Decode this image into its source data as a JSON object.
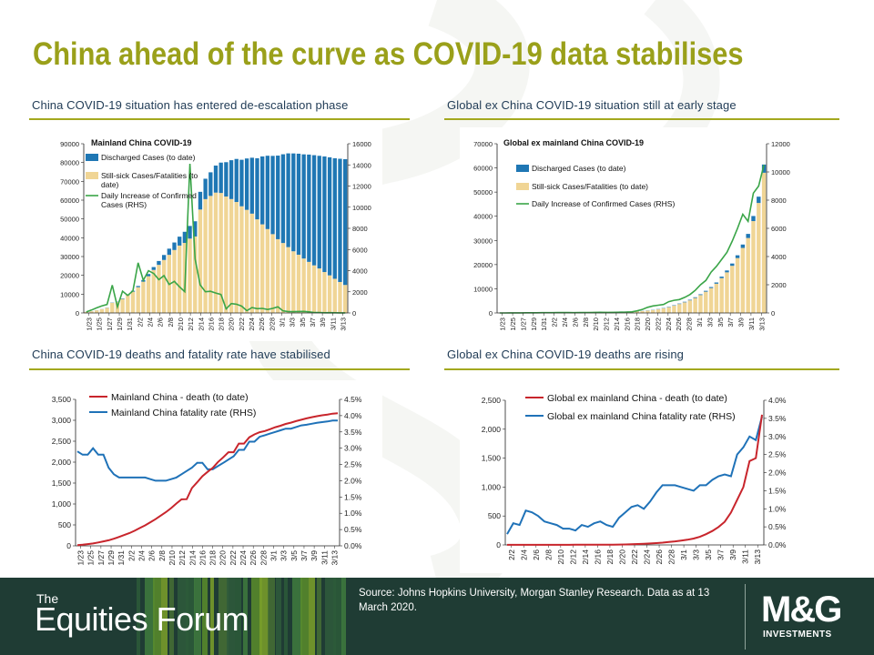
{
  "title": "China ahead of the curve as COVID-19 data stabilises",
  "panels": {
    "p1": "China COVID-19 situation has entered de-escalation phase",
    "p2": "Global ex China COVID-19 situation still at early stage",
    "p3": "China COVID-19 deaths and fatality rate have stabilised",
    "p4": "Global ex China COVID-19 deaths are rising"
  },
  "footer": {
    "the": "The",
    "forum": "Equities Forum",
    "source": "Source: Johns Hopkins University, Morgan Stanley Research. Data as at 13 March 2020.",
    "logo_main": "M&G",
    "logo_sub": "INVESTMENTS"
  },
  "colors": {
    "title": "#9aa01a",
    "blue_bar": "#1f77b4",
    "beige_bar": "#f0d595",
    "green_line": "#3aa548",
    "red_line": "#c8252c",
    "blue_line": "#1f72b8",
    "footer_bg": "#1f3c34"
  },
  "chart_data": [
    {
      "id": "c1",
      "type": "bar",
      "title": "Mainland China COVID-19",
      "xticks": [
        "1/23",
        "1/25",
        "1/27",
        "1/29",
        "1/31",
        "2/2",
        "2/4",
        "2/6",
        "2/8",
        "2/10",
        "2/12",
        "2/14",
        "2/16",
        "2/18",
        "2/20",
        "2/22",
        "2/24",
        "2/26",
        "2/28",
        "3/1",
        "3/3",
        "3/5",
        "3/7",
        "3/9",
        "3/11",
        "3/13"
      ],
      "y_left": {
        "min": 0,
        "max": 90000,
        "ticks": [
          0,
          10000,
          20000,
          30000,
          40000,
          50000,
          60000,
          70000,
          80000,
          90000
        ]
      },
      "y_right": {
        "min": 0,
        "max": 16000,
        "ticks": [
          0,
          2000,
          4000,
          6000,
          8000,
          10000,
          12000,
          14000,
          16000
        ]
      },
      "legend": [
        "Discharged Cases (to date)",
        "Still-sick Cases/Fatalities (to date)",
        "Daily Increase of Confirmed Cases (RHS)"
      ],
      "series": [
        {
          "name": "Discharged Cases (to date)",
          "stack": true,
          "values": [
            28,
            34,
            49,
            60,
            103,
            126,
            171,
            243,
            328,
            475,
            632,
            892,
            1153,
            1540,
            2050,
            2649,
            3281,
            3996,
            4740,
            5915,
            6728,
            8101,
            9419,
            10844,
            12552,
            14376,
            16155,
            18264,
            20659,
            22888,
            24734,
            27323,
            29745,
            32495,
            36117,
            39002,
            41625,
            44462,
            47204,
            49856,
            52045,
            53726,
            55404,
            57065,
            58600,
            59897,
            61475,
            62793,
            64111,
            65541,
            66911
          ]
        },
        {
          "name": "Still-sick Cases/Fatalities (to date)",
          "stack": true,
          "values": [
            543,
            886,
            1385,
            2017,
            2715,
            5397,
            5802,
            7468,
            9457,
            11316,
            13706,
            16627,
            19534,
            22864,
            25577,
            28176,
            30904,
            33477,
            35834,
            37251,
            39540,
            40660,
            55005,
            60543,
            62253,
            64002,
            63811,
            61925,
            60580,
            59020,
            56734,
            54839,
            52814,
            49787,
            47120,
            44611,
            41912,
            39229,
            37193,
            35015,
            32795,
            30977,
            28949,
            27164,
            25315,
            23676,
            21760,
            19988,
            18171,
            16465,
            14880
          ]
        },
        {
          "name": "Daily Increase of Confirmed Cases (RHS)",
          "axis": "right",
          "values": [
            95,
            277,
            486,
            669,
            802,
            2632,
            578,
            2054,
            1661,
            2089,
            4739,
            3086,
            3991,
            3733,
            3147,
            3523,
            2690,
            2987,
            2467,
            2015,
            14108,
            5090,
            2641,
            2008,
            2048,
            1888,
            1749,
            391,
            889,
            823,
            648,
            214,
            508,
            406,
            433,
            327,
            427,
            573,
            202,
            125,
            119,
            138,
            143,
            99,
            44,
            40,
            19,
            24,
            15,
            11,
            8
          ]
        }
      ]
    },
    {
      "id": "c2",
      "type": "bar",
      "title": "Global ex mainland China COVID-19",
      "xticks": [
        "1/23",
        "1/25",
        "1/27",
        "1/29",
        "1/31",
        "2/2",
        "2/4",
        "2/6",
        "2/8",
        "2/10",
        "2/12",
        "2/14",
        "2/16",
        "2/18",
        "2/20",
        "2/22",
        "2/24",
        "2/26",
        "2/28",
        "3/1",
        "3/3",
        "3/5",
        "3/7",
        "3/9",
        "3/11",
        "3/13"
      ],
      "y_left": {
        "min": 0,
        "max": 70000,
        "ticks": [
          0,
          10000,
          20000,
          30000,
          40000,
          50000,
          60000,
          70000
        ]
      },
      "y_right": {
        "min": 0,
        "max": 12000,
        "ticks": [
          0,
          2000,
          4000,
          6000,
          8000,
          10000,
          12000
        ]
      },
      "legend": [
        "Discharged Cases (to date)",
        "Still-sick Cases/Fatalities (to date)",
        "Daily Increase of Confirmed Cases (RHS)"
      ],
      "series": [
        {
          "name": "Discharged Cases (to date)",
          "stack": true,
          "values": [
            0,
            0,
            0,
            0,
            0,
            0,
            0,
            0,
            0,
            0,
            0,
            0,
            0,
            0,
            0,
            1,
            2,
            3,
            5,
            8,
            10,
            14,
            20,
            27,
            35,
            44,
            55,
            66,
            80,
            94,
            110,
            130,
            150,
            170,
            193,
            220,
            250,
            285,
            320,
            360,
            420,
            500,
            620,
            770,
            950,
            1150,
            1400,
            1700,
            2100,
            2600,
            3400
          ]
        },
        {
          "name": "Still-sick Cases/Fatalities (to date)",
          "stack": true,
          "values": [
            10,
            20,
            30,
            45,
            60,
            80,
            110,
            140,
            170,
            200,
            250,
            280,
            310,
            330,
            350,
            380,
            400,
            430,
            460,
            480,
            500,
            520,
            540,
            560,
            590,
            620,
            680,
            770,
            950,
            1200,
            1500,
            1900,
            2400,
            3000,
            3700,
            4400,
            5200,
            6200,
            7400,
            8800,
            10300,
            12100,
            14400,
            16800,
            19500,
            22700,
            26900,
            31000,
            38000,
            45500,
            58000
          ]
        },
        {
          "name": "Daily Increase of Confirmed Cases (RHS)",
          "axis": "right",
          "values": [
            2,
            3,
            4,
            6,
            8,
            10,
            12,
            15,
            18,
            20,
            22,
            25,
            25,
            25,
            22,
            25,
            30,
            35,
            40,
            45,
            40,
            40,
            45,
            50,
            60,
            80,
            150,
            250,
            400,
            500,
            550,
            600,
            800,
            900,
            950,
            1100,
            1300,
            1600,
            2000,
            2300,
            2900,
            3300,
            3800,
            4300,
            5100,
            6000,
            7000,
            6500,
            8500,
            9000,
            10500
          ]
        }
      ]
    },
    {
      "id": "c3",
      "type": "line",
      "xticks": [
        "1/23",
        "1/25",
        "1/27",
        "1/29",
        "1/31",
        "2/2",
        "2/4",
        "2/6",
        "2/8",
        "2/10",
        "2/12",
        "2/14",
        "2/16",
        "2/18",
        "2/20",
        "2/22",
        "2/24",
        "2/26",
        "2/28",
        "3/1",
        "3/3",
        "3/5",
        "3/7",
        "3/9",
        "3/11",
        "3/13"
      ],
      "y_left": {
        "min": 0,
        "max": 3500,
        "ticks": [
          0,
          500,
          1000,
          1500,
          2000,
          2500,
          3000,
          3500
        ],
        "labels": [
          "0",
          "500",
          "1,000",
          "1,500",
          "2,000",
          "2,500",
          "3,000",
          "3,500"
        ]
      },
      "y_right": {
        "min": 0,
        "max": 4.5,
        "ticks": [
          0,
          0.5,
          1,
          1.5,
          2,
          2.5,
          3,
          3.5,
          4,
          4.5
        ],
        "labels": [
          "0.0%",
          "0.5%",
          "1.0%",
          "1.5%",
          "2.0%",
          "2.5%",
          "3.0%",
          "3.5%",
          "4.0%",
          "4.5%"
        ]
      },
      "legend": [
        "Mainland China - death (to date)",
        "Mainland China fatality rate (RHS)"
      ],
      "series": [
        {
          "name": "Mainland China - death (to date)",
          "values": [
            17,
            25,
            41,
            56,
            80,
            106,
            132,
            170,
            213,
            259,
            304,
            361,
            425,
            490,
            562,
            636,
            721,
            805,
            902,
            1011,
            1111,
            1115,
            1380,
            1520,
            1662,
            1767,
            1864,
            2003,
            2116,
            2238,
            2238,
            2443,
            2443,
            2593,
            2663,
            2715,
            2744,
            2788,
            2835,
            2870,
            2912,
            2943,
            2981,
            3012,
            3045,
            3073,
            3097,
            3120,
            3136,
            3158,
            3169
          ]
        },
        {
          "name": "Mainland China fatality rate (RHS)",
          "axis": "right",
          "values": [
            2.9,
            2.8,
            2.8,
            3.0,
            2.8,
            2.8,
            2.4,
            2.2,
            2.1,
            2.1,
            2.1,
            2.1,
            2.1,
            2.1,
            2.05,
            2.0,
            2.0,
            2.0,
            2.05,
            2.1,
            2.2,
            2.3,
            2.4,
            2.55,
            2.55,
            2.35,
            2.35,
            2.45,
            2.55,
            2.65,
            2.75,
            2.95,
            2.95,
            3.2,
            3.2,
            3.35,
            3.4,
            3.45,
            3.5,
            3.55,
            3.6,
            3.6,
            3.65,
            3.7,
            3.72,
            3.75,
            3.78,
            3.8,
            3.82,
            3.85,
            3.85
          ]
        }
      ]
    },
    {
      "id": "c4",
      "type": "line",
      "xticks": [
        "2/2",
        "2/4",
        "2/6",
        "2/8",
        "2/10",
        "2/12",
        "2/14",
        "2/16",
        "2/18",
        "2/20",
        "2/22",
        "2/24",
        "2/26",
        "2/28",
        "3/1",
        "3/3",
        "3/5",
        "3/7",
        "3/9",
        "3/11",
        "3/13"
      ],
      "y_left": {
        "min": 0,
        "max": 2500,
        "ticks": [
          0,
          500,
          1000,
          1500,
          2000,
          2500
        ],
        "labels": [
          "0",
          "500",
          "1,000",
          "1,500",
          "2,000",
          "2,500"
        ]
      },
      "y_right": {
        "min": 0,
        "max": 4.0,
        "ticks": [
          0,
          0.5,
          1,
          1.5,
          2,
          2.5,
          3,
          3.5,
          4
        ],
        "labels": [
          "0.0%",
          "0.5%",
          "1.0%",
          "1.5%",
          "2.0%",
          "2.5%",
          "3.0%",
          "3.5%",
          "4.0%"
        ]
      },
      "legend": [
        "Global ex mainland China - death (to date)",
        "Global ex mainland China fatality rate (RHS)"
      ],
      "series": [
        {
          "name": "Global ex mainland China - death (to date)",
          "values": [
            1,
            1,
            1,
            1,
            1,
            1,
            1,
            2,
            2,
            2,
            2,
            3,
            3,
            3,
            3,
            3,
            4,
            5,
            6,
            8,
            11,
            15,
            20,
            25,
            32,
            40,
            50,
            62,
            75,
            90,
            110,
            140,
            185,
            240,
            310,
            400,
            560,
            780,
            1000,
            1450,
            1500,
            2250
          ]
        },
        {
          "name": "Global ex mainland China fatality rate (RHS)",
          "axis": "right",
          "values": [
            0.3,
            0.6,
            0.55,
            0.95,
            0.9,
            0.8,
            0.65,
            0.6,
            0.55,
            0.45,
            0.45,
            0.4,
            0.55,
            0.5,
            0.6,
            0.65,
            0.55,
            0.5,
            0.75,
            0.9,
            1.05,
            1.1,
            1.0,
            1.2,
            1.45,
            1.65,
            1.65,
            1.65,
            1.6,
            1.55,
            1.5,
            1.65,
            1.65,
            1.8,
            1.9,
            1.95,
            1.9,
            2.5,
            2.7,
            3.0,
            2.9,
            3.55
          ]
        }
      ]
    }
  ]
}
